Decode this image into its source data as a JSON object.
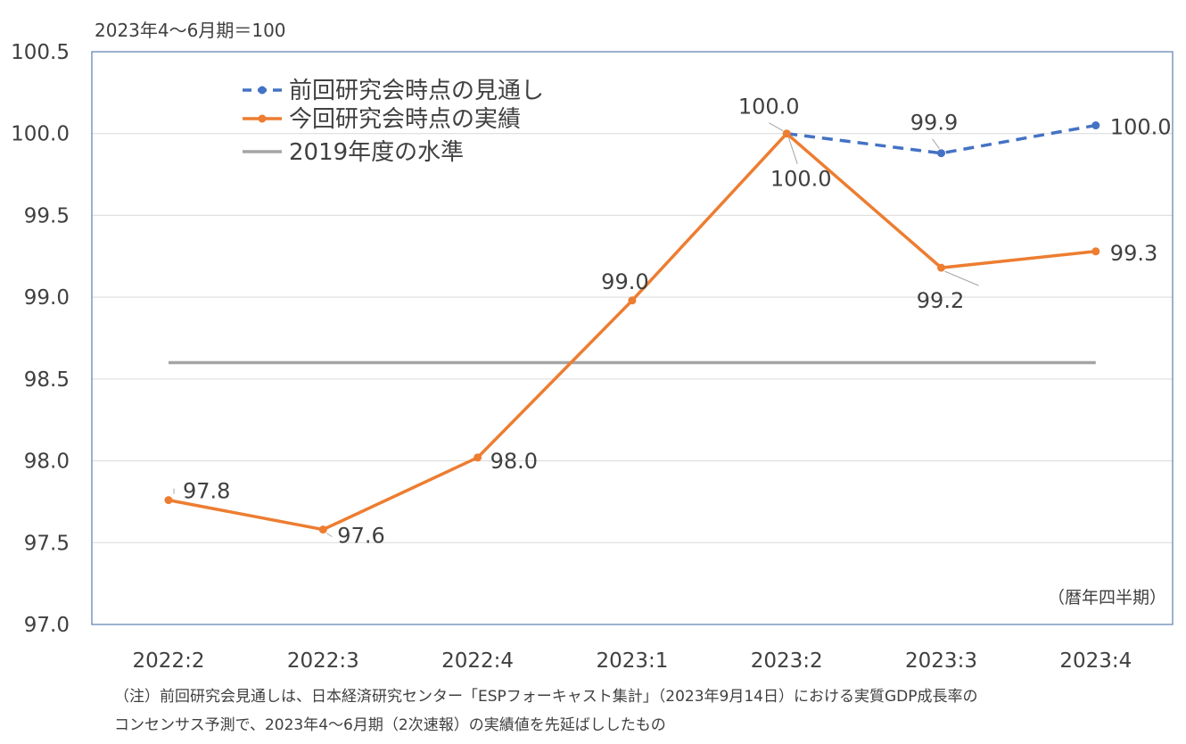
{
  "unit_label": "2023年4〜6月期＝100",
  "period_label": "（暦年四半期）",
  "notes": [
    "（注）前回研究会見通しは、日本経済研究センター「ESPフォーキャスト集計」（2023年9月14日）における実質GDP成長率の",
    "コンセンサス予測で、2023年4〜6月期（2次速報）の実績値を先延ばししたもの"
  ],
  "colors": {
    "forecast": "#4472C4",
    "actual": "#ED7D31",
    "baseline": "#A5A5A5",
    "grid": "#D9D9D9",
    "frame": "#5B7DB1",
    "text": "#404040"
  },
  "chart_data": {
    "type": "line",
    "categories": [
      "2022:2",
      "2022:3",
      "2022:4",
      "2023:1",
      "2023:2",
      "2023:3",
      "2023:4"
    ],
    "ylim": [
      97.0,
      100.5
    ],
    "yticks": [
      "97.0",
      "97.5",
      "98.0",
      "98.5",
      "99.0",
      "99.5",
      "100.0",
      "100.5"
    ],
    "grid": true,
    "legend_position": "top-left",
    "series": [
      {
        "name": "前回研究会時点の見通し",
        "style": "dashed",
        "color": "#4472C4",
        "values": [
          null,
          null,
          null,
          null,
          100.0,
          99.88,
          100.05
        ],
        "labels": [
          null,
          null,
          null,
          null,
          null,
          "99.9",
          "100.0"
        ]
      },
      {
        "name": "今回研究会時点の実績",
        "style": "solid",
        "color": "#ED7D31",
        "values": [
          97.76,
          97.58,
          98.02,
          98.98,
          100.0,
          99.18,
          99.28
        ],
        "labels": [
          "97.8",
          "97.6",
          "98.0",
          "99.0",
          "100.0",
          "99.2",
          "99.3"
        ]
      },
      {
        "name": "2019年度の水準",
        "style": "solid",
        "color": "#A5A5A5",
        "values": [
          98.6,
          98.6,
          98.6,
          98.6,
          98.6,
          98.6,
          98.6
        ],
        "labels": [
          null,
          null,
          null,
          null,
          null,
          null,
          null
        ]
      }
    ],
    "extra_labels": [
      {
        "series": 0,
        "index": 4,
        "text": "100.0"
      }
    ]
  }
}
